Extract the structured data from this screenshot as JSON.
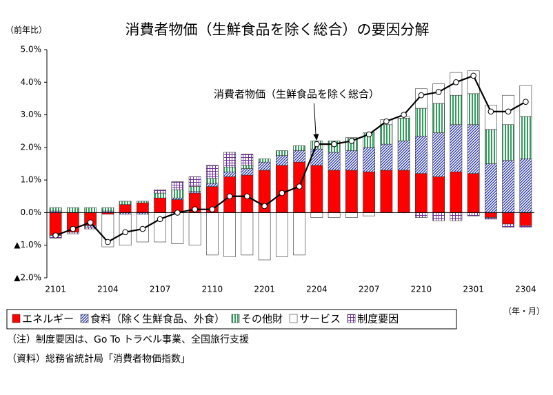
{
  "chart_data": {
    "type": "bar",
    "stacked": true,
    "title": "消費者物価（生鮮食品を除く総合）の要因分解",
    "y_label": "（前年比）",
    "x_label": "（年・月）",
    "annotation": "消費者物価（生鮮食品を除く総合）",
    "notes": [
      "（注）制度要因は、Go To トラベル事業、全国旅行支援",
      "（資料）総務省統計局「消費者物価指数」"
    ],
    "categories": [
      "2101",
      null,
      null,
      "2104",
      null,
      null,
      "2107",
      null,
      null,
      "2110",
      null,
      null,
      "2201",
      null,
      null,
      "2204",
      null,
      null,
      "2207",
      null,
      null,
      "2210",
      null,
      null,
      "2301",
      null,
      null,
      "2304"
    ],
    "series": [
      {
        "name": "エネルギー",
        "color": "#ff0000",
        "pattern": "solid",
        "values": [
          -0.7,
          -0.6,
          -0.4,
          -0.05,
          0.25,
          0.3,
          0.45,
          0.4,
          0.6,
          0.8,
          1.1,
          1.15,
          1.3,
          1.45,
          1.55,
          1.45,
          1.3,
          1.3,
          1.25,
          1.3,
          1.3,
          1.2,
          1.1,
          1.25,
          1.2,
          -0.15,
          -0.35,
          -0.4
        ]
      },
      {
        "name": "食料（除く生鮮食品、外食）",
        "color": "#1f2fa8",
        "pattern": "diagonal",
        "values": [
          0.05,
          0.0,
          -0.05,
          0.05,
          -0.05,
          -0.05,
          0.0,
          0.05,
          0.05,
          0.1,
          0.15,
          0.2,
          0.25,
          0.3,
          0.35,
          0.5,
          0.55,
          0.6,
          0.75,
          0.8,
          0.9,
          1.15,
          1.35,
          1.45,
          1.5,
          1.5,
          1.6,
          1.65
        ]
      },
      {
        "name": "その他財",
        "color": "#2e9e5b",
        "pattern": "vertical",
        "values": [
          0.1,
          0.15,
          0.15,
          0.1,
          0.1,
          0.05,
          0.15,
          0.25,
          0.15,
          0.15,
          0.15,
          0.1,
          0.1,
          0.15,
          0.15,
          0.25,
          0.35,
          0.4,
          0.45,
          0.6,
          0.7,
          0.85,
          0.9,
          0.9,
          0.95,
          1.05,
          1.1,
          1.3
        ]
      },
      {
        "name": "サービス",
        "color": "#ffffff",
        "pattern": "solid",
        "values": [
          0.0,
          0.0,
          0.0,
          -1.0,
          -0.95,
          -0.85,
          -0.9,
          -0.95,
          -1.0,
          -1.3,
          -1.35,
          -1.3,
          -1.45,
          -1.35,
          -1.3,
          -0.15,
          -0.15,
          -0.15,
          -0.1,
          0.15,
          0.05,
          0.6,
          0.6,
          0.7,
          0.7,
          0.75,
          0.9,
          0.95
        ]
      },
      {
        "name": "制度要因",
        "color": "#7030a0",
        "pattern": "grid",
        "values": [
          -0.08,
          -0.05,
          -0.05,
          0.0,
          0.0,
          0.0,
          0.1,
          0.25,
          0.3,
          0.4,
          0.45,
          0.35,
          0.0,
          0.0,
          0.0,
          0.0,
          0.0,
          0.0,
          0.0,
          0.0,
          0.0,
          -0.15,
          -0.25,
          -0.25,
          -0.1,
          -0.05,
          -0.1,
          -0.05
        ]
      }
    ],
    "line": {
      "color": "#000000",
      "values": [
        -0.7,
        -0.5,
        -0.3,
        -0.9,
        -0.6,
        -0.5,
        -0.2,
        0.0,
        0.1,
        0.1,
        0.5,
        0.5,
        0.2,
        0.6,
        0.8,
        2.1,
        2.1,
        2.2,
        2.4,
        2.8,
        3.0,
        3.6,
        3.7,
        4.0,
        4.2,
        3.1,
        3.1,
        3.4
      ]
    },
    "ylim": [
      -2,
      5
    ],
    "yticks": [
      {
        "value": 5,
        "label": "5.0%"
      },
      {
        "value": 4,
        "label": "4.0%"
      },
      {
        "value": 3,
        "label": "3.0%"
      },
      {
        "value": 2,
        "label": "2.0%"
      },
      {
        "value": 1,
        "label": "1.0%"
      },
      {
        "value": 0,
        "label": "0.0%"
      },
      {
        "value": -1,
        "label": "▲1.0%"
      },
      {
        "value": -2,
        "label": "▲2.0%"
      }
    ],
    "grid": false
  }
}
